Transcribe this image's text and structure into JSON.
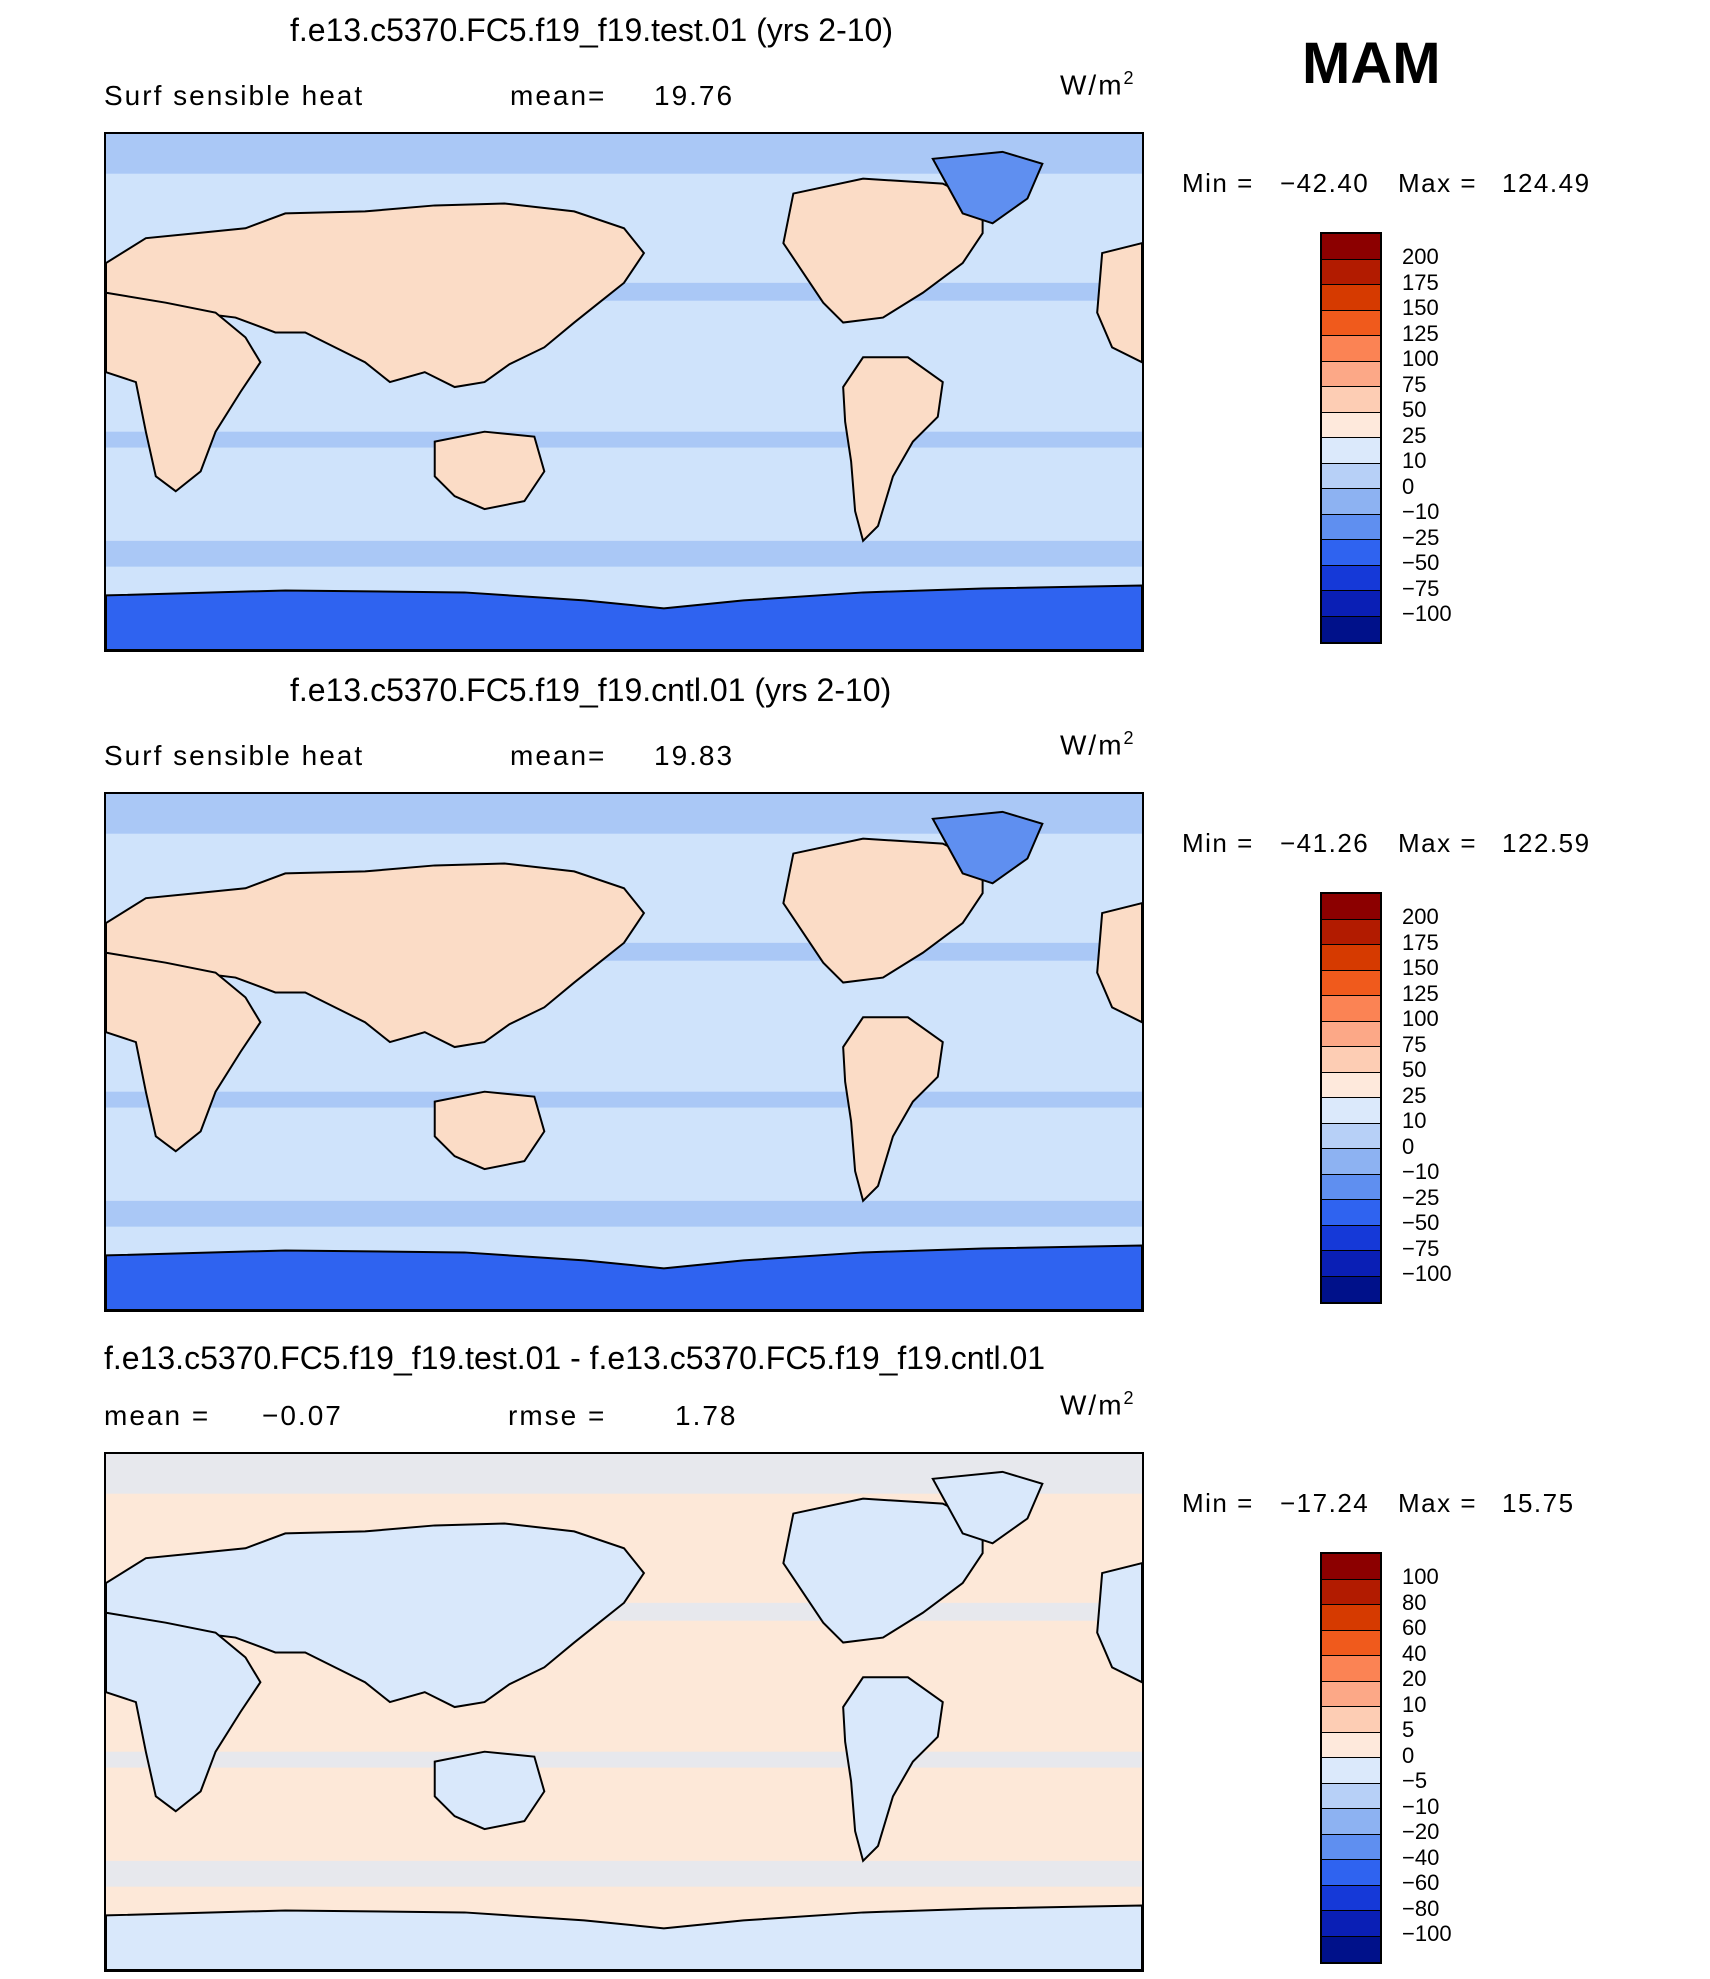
{
  "season": "MAM",
  "panels": [
    {
      "id": "test",
      "title": "f.e13.c5370.FC5.f19_f19.test.01 (yrs 2-10)",
      "variable": "Surf  sensible  heat",
      "stat1_label": "mean=",
      "stat1_value": "19.76",
      "stat2_label": "",
      "stat2_value": "",
      "units": "W/m",
      "units_exp": "2",
      "min_label": "Min  =",
      "min_value": "−42.40",
      "max_label": "Max  =",
      "max_value": "124.49",
      "ocean_fill": "#cfe3fb",
      "land_fill": "#fbdcc6",
      "colorbar": {
        "labels": [
          "200",
          "175",
          "150",
          "125",
          "100",
          "75",
          "50",
          "25",
          "10",
          "0",
          "−10",
          "−25",
          "−50",
          "−75",
          "−100"
        ],
        "colors": [
          "#8c0000",
          "#b21b00",
          "#d63a00",
          "#f05a1c",
          "#fb8354",
          "#fca887",
          "#fdcdb4",
          "#fee9dc",
          "#dbe9fb",
          "#b7d0f7",
          "#8db2f2",
          "#5f8ff0",
          "#2f63f0",
          "#1539d8",
          "#0a1fb5",
          "#00118a"
        ]
      }
    },
    {
      "id": "cntl",
      "title": "f.e13.c5370.FC5.f19_f19.cntl.01 (yrs 2-10)",
      "variable": "Surf  sensible  heat",
      "stat1_label": "mean=",
      "stat1_value": "19.83",
      "stat2_label": "",
      "stat2_value": "",
      "units": "W/m",
      "units_exp": "2",
      "min_label": "Min  =",
      "min_value": "−41.26",
      "max_label": "Max  =",
      "max_value": "122.59",
      "ocean_fill": "#cfe3fb",
      "land_fill": "#fbdcc6",
      "colorbar": {
        "labels": [
          "200",
          "175",
          "150",
          "125",
          "100",
          "75",
          "50",
          "25",
          "10",
          "0",
          "−10",
          "−25",
          "−50",
          "−75",
          "−100"
        ],
        "colors": [
          "#8c0000",
          "#b21b00",
          "#d63a00",
          "#f05a1c",
          "#fb8354",
          "#fca887",
          "#fdcdb4",
          "#fee9dc",
          "#dbe9fb",
          "#b7d0f7",
          "#8db2f2",
          "#5f8ff0",
          "#2f63f0",
          "#1539d8",
          "#0a1fb5",
          "#00118a"
        ]
      }
    },
    {
      "id": "diff",
      "title": "f.e13.c5370.FC5.f19_f19.test.01 - f.e13.c5370.FC5.f19_f19.cntl.01",
      "variable": "",
      "stat1_label": "mean  =",
      "stat1_value": "−0.07",
      "stat2_label": "rmse  =",
      "stat2_value": "1.78",
      "units": "W/m",
      "units_exp": "2",
      "min_label": "Min  =",
      "min_value": "−17.24",
      "max_label": "Max  =",
      "max_value": "15.75",
      "ocean_fill": "#fde8d8",
      "land_fill": "#d9e8fb",
      "colorbar": {
        "labels": [
          "100",
          "80",
          "60",
          "40",
          "20",
          "10",
          "5",
          "0",
          "−5",
          "−10",
          "−20",
          "−40",
          "−60",
          "−80",
          "−100"
        ],
        "colors": [
          "#8c0000",
          "#b21b00",
          "#d63a00",
          "#f05a1c",
          "#fb8354",
          "#fca887",
          "#fdcdb4",
          "#fee9dc",
          "#dbe9fb",
          "#b7d0f7",
          "#8db2f2",
          "#5f8ff0",
          "#2f63f0",
          "#1539d8",
          "#0a1fb5",
          "#00118a"
        ]
      }
    }
  ]
}
